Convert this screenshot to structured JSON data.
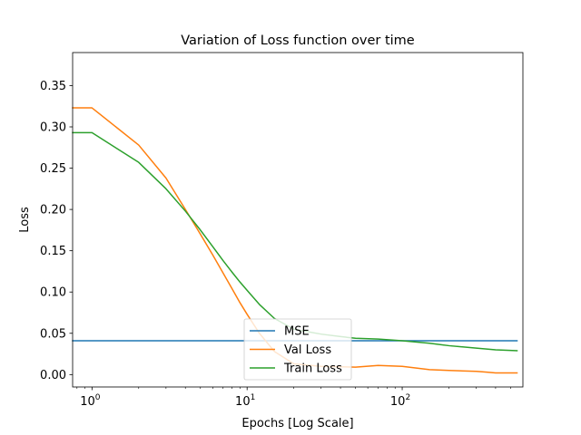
{
  "chart_data": {
    "type": "line",
    "title": "Variation of Loss function over time",
    "xlabel": "Epochs [Log Scale]",
    "ylabel": "Loss",
    "xscale": "log",
    "xlim": [
      0.75,
      600
    ],
    "ylim": [
      -0.015,
      0.39
    ],
    "x_ticks": [
      {
        "value": 1,
        "base": "10",
        "exp": "0"
      },
      {
        "value": 10,
        "base": "10",
        "exp": "1"
      },
      {
        "value": 100,
        "base": "10",
        "exp": "2"
      }
    ],
    "y_ticks": [
      "0.00",
      "0.05",
      "0.10",
      "0.15",
      "0.20",
      "0.25",
      "0.30",
      "0.35"
    ],
    "legend_position": "lower center",
    "series": [
      {
        "name": "MSE",
        "color": "#1f77b4",
        "x": [
          0.75,
          550
        ],
        "y": [
          0.041,
          0.041
        ]
      },
      {
        "name": "Val Loss",
        "color": "#ff7f0e",
        "x": [
          0.75,
          1,
          2,
          3,
          4,
          5,
          6,
          7,
          8,
          9,
          10,
          12,
          15,
          20,
          30,
          50,
          70,
          100,
          150,
          200,
          300,
          350,
          400,
          550
        ],
        "y": [
          0.323,
          0.323,
          0.278,
          0.238,
          0.2,
          0.17,
          0.145,
          0.123,
          0.104,
          0.087,
          0.073,
          0.05,
          0.028,
          0.013,
          0.01,
          0.009,
          0.011,
          0.01,
          0.006,
          0.005,
          0.004,
          0.003,
          0.002,
          0.002
        ]
      },
      {
        "name": "Train Loss",
        "color": "#2ca02c",
        "x": [
          0.75,
          1,
          2,
          3,
          4,
          5,
          6,
          7,
          8,
          9,
          10,
          12,
          15,
          20,
          30,
          40,
          50,
          70,
          100,
          150,
          200,
          300,
          400,
          550
        ],
        "y": [
          0.293,
          0.293,
          0.257,
          0.225,
          0.198,
          0.175,
          0.155,
          0.138,
          0.124,
          0.112,
          0.102,
          0.085,
          0.068,
          0.055,
          0.049,
          0.046,
          0.044,
          0.043,
          0.041,
          0.038,
          0.035,
          0.032,
          0.03,
          0.029
        ]
      }
    ]
  }
}
